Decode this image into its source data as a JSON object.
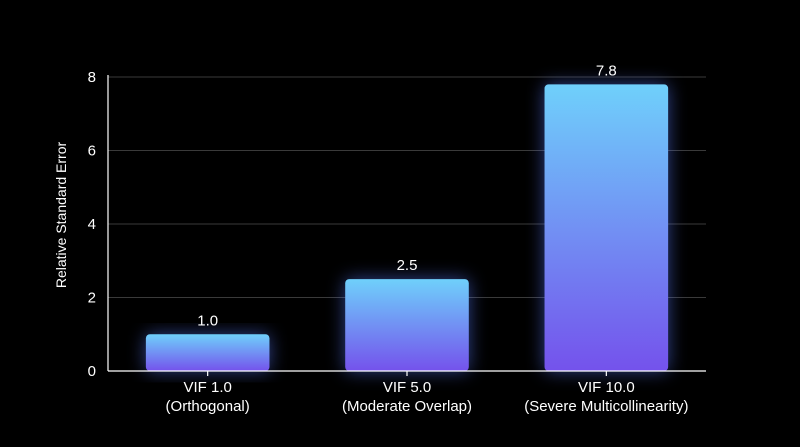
{
  "chart_data": {
    "type": "bar",
    "categories": [
      [
        "VIF 1.0",
        "(Orthogonal)"
      ],
      [
        "VIF 5.0",
        "(Moderate Overlap)"
      ],
      [
        "VIF 10.0",
        "(Severe Multicollinearity)"
      ]
    ],
    "values": [
      1.0,
      2.5,
      7.8
    ],
    "value_labels": [
      "1.0",
      "2.5",
      "7.8"
    ],
    "title": "",
    "xlabel": "",
    "ylabel": "Relative Standard Error",
    "ylim": [
      0,
      8
    ],
    "yticks": [
      0,
      2,
      4,
      6,
      8
    ],
    "grid": "horizontal",
    "colors": {
      "background": "#000000",
      "bar_top": "#6fd0fb",
      "bar_bottom": "#7452ec",
      "glow": "#5a7cff",
      "grid": "#3a3a3a",
      "axis": "#ffffff",
      "text": "#ffffff"
    }
  }
}
